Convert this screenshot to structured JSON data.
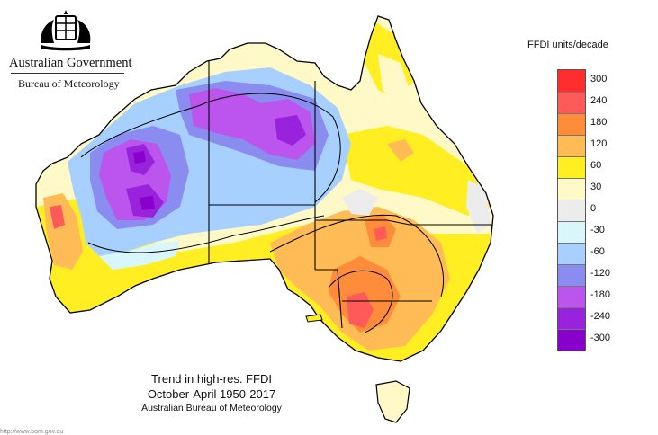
{
  "header": {
    "government": "Australian Government",
    "agency": "Bureau of Meteorology"
  },
  "map": {
    "type": "choropleth",
    "region": "Australia",
    "caption": {
      "line1": "Trend in high-res. FFDI",
      "line2": "October-April 1950-2017",
      "line3": "Australian Bureau of Meteorology"
    }
  },
  "legend": {
    "title": "FFDI units/decade",
    "swatch_colors": [
      "#ff2d2d",
      "#ff5a5a",
      "#ff8c3a",
      "#ffbb55",
      "#ffee22",
      "#fff9c8",
      "#ececec",
      "#d9f7fb",
      "#a8d0ff",
      "#8a8cf0",
      "#bb55ee",
      "#9922dd",
      "#8800cc"
    ],
    "labels": [
      "300",
      "240",
      "180",
      "120",
      "60",
      "30",
      "0",
      "-30",
      "-60",
      "-120",
      "-180",
      "-240",
      "-300"
    ]
  },
  "credit": "http://www.bom.gov.au"
}
